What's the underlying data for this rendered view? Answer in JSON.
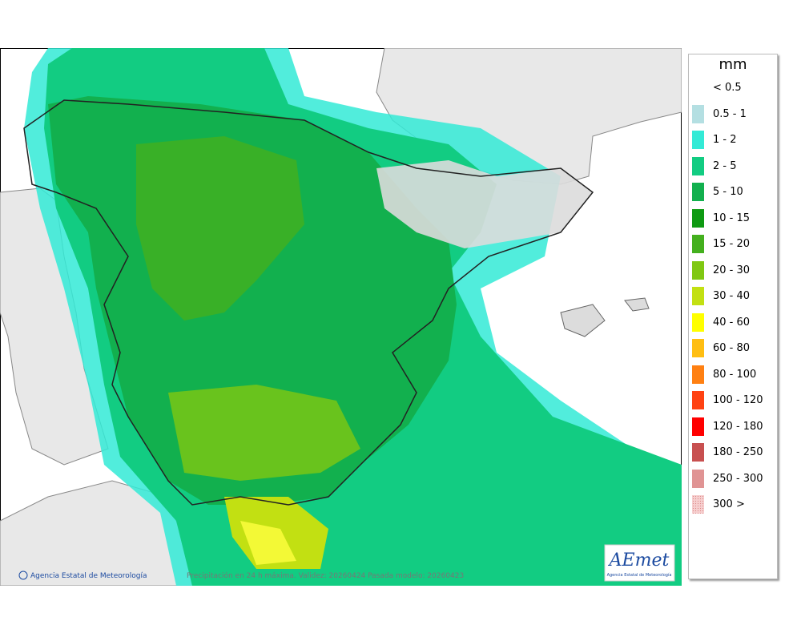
{
  "legend": {
    "title": "mm",
    "items": [
      {
        "label": "< 0.5",
        "color": "#ffffff"
      },
      {
        "label": "0.5 - 1",
        "color": "#b4dfe2"
      },
      {
        "label": "1 - 2",
        "color": "#33ead6"
      },
      {
        "label": "2 - 5",
        "color": "#12cc82"
      },
      {
        "label": "5 - 10",
        "color": "#12b04e"
      },
      {
        "label": "10 - 15",
        "color": "#0e9a12"
      },
      {
        "label": "15 - 20",
        "color": "#44b01e"
      },
      {
        "label": "20 - 30",
        "color": "#80c812"
      },
      {
        "label": "30 - 40",
        "color": "#c2e012"
      },
      {
        "label": "40 - 60",
        "color": "#ffff00"
      },
      {
        "label": "60 - 80",
        "color": "#ffbe12"
      },
      {
        "label": "80 - 100",
        "color": "#ff8012"
      },
      {
        "label": "100 - 120",
        "color": "#ff4212"
      },
      {
        "label": "120 - 180",
        "color": "#ff0000"
      },
      {
        "label": "180 - 250",
        "color": "#c85050"
      },
      {
        "label": "250 - 300",
        "color": "#e09494"
      },
      {
        "label": "300 >",
        "color": "#f6cfcf"
      }
    ]
  },
  "map": {
    "credit": "Agencia Estatal de Meteorología",
    "caption": "Precipitación en 24 h máxima. Validez: 20260424 Pasada modelo: 20260423",
    "logo": {
      "brand": "AEmet",
      "subtitle": "Agencia Estatal de Meteorología"
    }
  }
}
